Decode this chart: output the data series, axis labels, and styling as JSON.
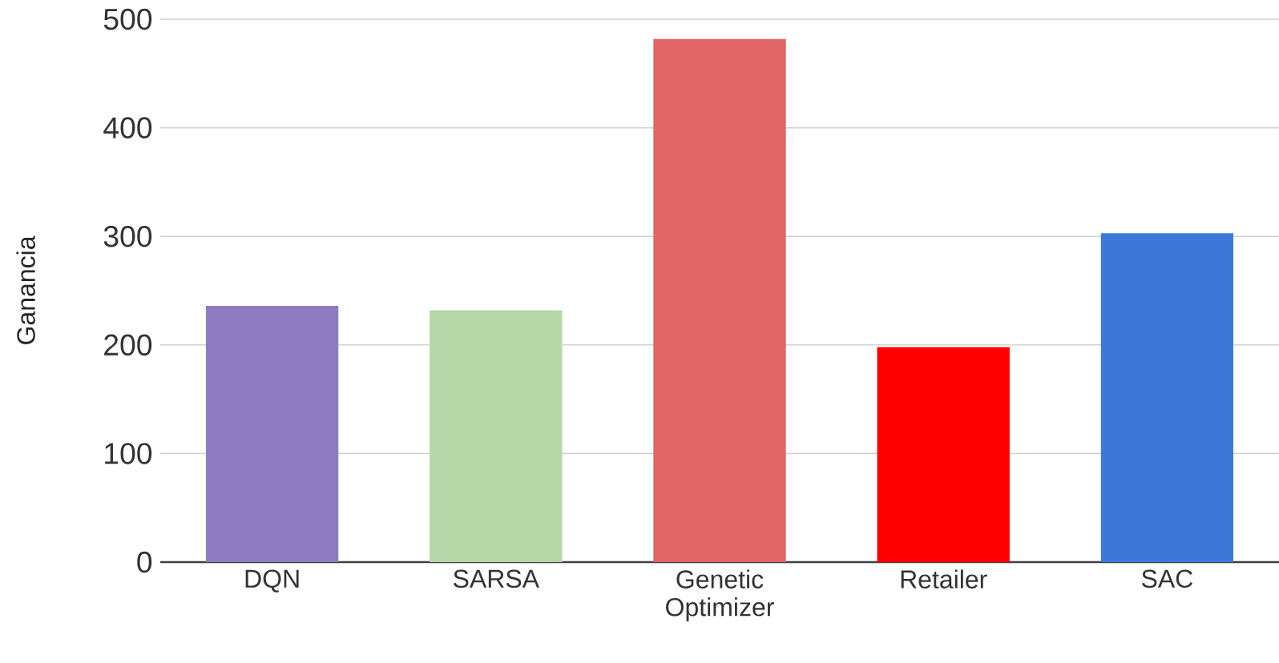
{
  "chart_data": {
    "type": "bar",
    "ylabel": "Ganancia",
    "categories": [
      "DQN",
      "SARSA",
      "Genetic Optimizer",
      "Retailer",
      "SAC"
    ],
    "values": [
      236,
      232,
      482,
      198,
      303
    ],
    "colors": [
      "#8e7cc3",
      "#b6d7a8",
      "#e06666",
      "#ff0000",
      "#3c78d8"
    ],
    "ylim": [
      0,
      500
    ],
    "yticks": [
      0,
      100,
      200,
      300,
      400,
      500
    ],
    "grid": "y"
  }
}
